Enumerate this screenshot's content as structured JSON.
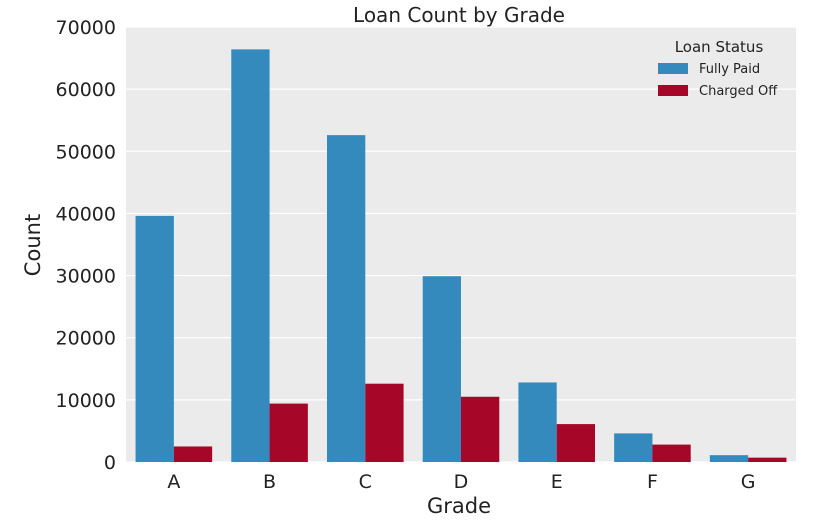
{
  "chart_data": {
    "type": "bar",
    "title": "Loan Count by Grade",
    "xlabel": "Grade",
    "ylabel": "Count",
    "categories": [
      "A",
      "B",
      "C",
      "D",
      "E",
      "F",
      "G"
    ],
    "series": [
      {
        "name": "Fully Paid",
        "color": "#348abd",
        "values": [
          39600,
          66400,
          52600,
          29900,
          12800,
          4600,
          1100
        ]
      },
      {
        "name": "Charged Off",
        "color": "#a60628",
        "values": [
          2500,
          9400,
          12600,
          10500,
          6100,
          2800,
          700
        ]
      }
    ],
    "ylim": [
      0,
      70000
    ],
    "yticks": [
      "0",
      "10000",
      "20000",
      "30000",
      "40000",
      "50000",
      "60000",
      "70000"
    ],
    "grid": true,
    "legend": {
      "title": "Loan Status",
      "position": "top-right"
    },
    "background": "#ebebeb"
  }
}
